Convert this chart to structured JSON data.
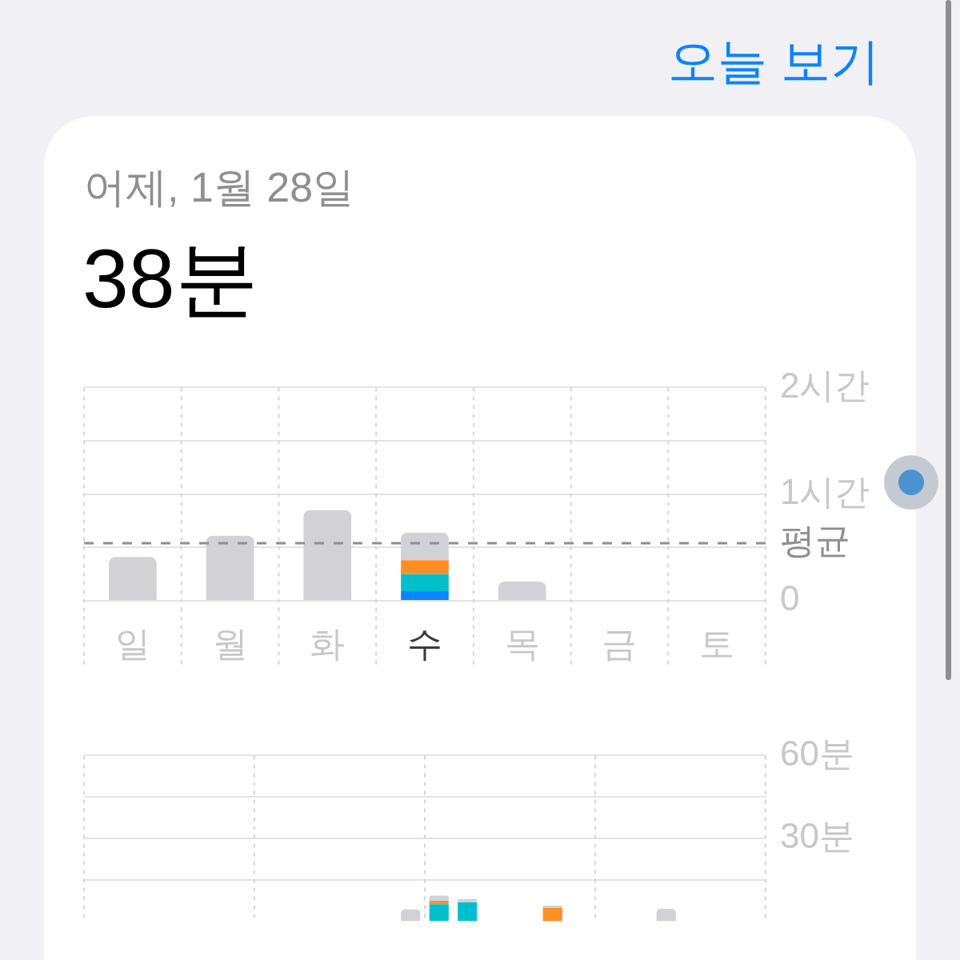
{
  "chart_data": [
    {
      "type": "bar",
      "title": "어제, 1월 28일",
      "subtitle": "38분",
      "annotations": [
        "오늘 보기"
      ],
      "categories": [
        "일",
        "월",
        "화",
        "수",
        "목",
        "금",
        "토"
      ],
      "stacked": true,
      "series": [
        {
          "color": "#0a84ff",
          "values": [
            null,
            null,
            null,
            0.09,
            null,
            null,
            null
          ]
        },
        {
          "color": "#00bfcc",
          "values": [
            null,
            null,
            null,
            0.16,
            null,
            null,
            null
          ]
        },
        {
          "color": "#ff8e26",
          "values": [
            null,
            null,
            null,
            0.13,
            null,
            null,
            null
          ]
        },
        {
          "color": "#d1d1d6",
          "values": [
            0.41,
            0.61,
            0.85,
            0.26,
            0.18,
            null,
            null
          ]
        }
      ],
      "ylim": [
        0,
        2
      ],
      "yticks": [
        0,
        {
          "value": 0.5,
          "label": null
        },
        {
          "value": 1,
          "label": "1시간"
        },
        {
          "value": 1.5,
          "label": null
        },
        {
          "value": 2,
          "label": "2시간"
        }
      ],
      "grid": true,
      "ref_lines": [
        {
          "axis": "y",
          "value": 0.54,
          "label": "평균",
          "color": "#8e8e93",
          "line_style": "dashed"
        }
      ]
    },
    {
      "type": "bar",
      "categories": [
        null,
        null,
        null,
        null,
        null,
        null,
        null,
        null,
        null,
        null,
        null,
        null,
        null,
        null,
        null,
        null,
        null,
        null,
        null,
        null,
        null,
        null,
        null,
        null
      ],
      "stacked": true,
      "series": [
        {
          "color": "#00bfcc",
          "values": [
            null,
            null,
            null,
            null,
            null,
            null,
            null,
            null,
            null,
            null,
            null,
            null,
            6.2,
            6.8,
            null,
            null,
            null,
            null,
            null,
            null,
            null,
            null,
            null,
            null
          ]
        },
        {
          "color": "#ff8e26",
          "values": [
            null,
            null,
            null,
            null,
            null,
            null,
            null,
            null,
            null,
            null,
            null,
            null,
            1.2,
            null,
            null,
            null,
            4.9,
            null,
            null,
            null,
            null,
            null,
            null,
            null
          ]
        },
        {
          "color": "#d1d1d6",
          "values": [
            null,
            null,
            null,
            null,
            null,
            null,
            null,
            null,
            null,
            null,
            null,
            4.3,
            1.9,
            1.3,
            null,
            null,
            0.8,
            null,
            null,
            null,
            4.5,
            null,
            null,
            null
          ]
        }
      ],
      "ylim": [
        0,
        60
      ],
      "yticks": [
        {
          "value": 15,
          "label": null
        },
        {
          "value": 30,
          "label": "30분"
        },
        {
          "value": 45,
          "label": null
        },
        {
          "value": 60,
          "label": "60분"
        }
      ],
      "grid": true,
      "tick_labels": "y"
    }
  ]
}
